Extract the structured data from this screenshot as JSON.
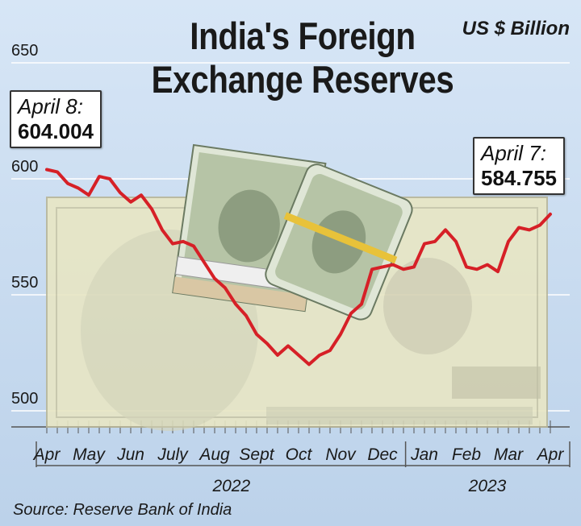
{
  "header": {
    "title_line1": "India's Foreign",
    "title_line2": "Exchange Reserves",
    "unit": "US $ Billion"
  },
  "source": "Source: Reserve Bank of India",
  "colors": {
    "background": "#c9dcf0",
    "line": "#d62027",
    "grid": "#ffffff"
  },
  "callouts": {
    "start": {
      "date": "April 8:",
      "value": "604.004"
    },
    "end": {
      "date": "April 7:",
      "value": "584.755"
    }
  },
  "chart_data": {
    "type": "line",
    "title": "India's Foreign Exchange Reserves",
    "unit": "US $ Billion",
    "ylim": [
      500,
      650
    ],
    "yticks": [
      650,
      600,
      550,
      500
    ],
    "grid": true,
    "month_ticks": [
      "Apr",
      "May",
      "Jun",
      "July",
      "Aug",
      "Sept",
      "Oct",
      "Nov",
      "Dec",
      "Jan",
      "Feb",
      "Mar",
      "Apr"
    ],
    "years": [
      {
        "label": "2022",
        "center_month_index": 4.4
      },
      {
        "label": "2023",
        "center_month_index": 10.5
      }
    ],
    "series": [
      {
        "x": [
          0,
          0.25,
          0.5,
          0.75,
          1.0,
          1.25,
          1.5,
          1.75,
          2.0,
          2.25,
          2.5,
          2.75,
          3.0,
          3.25,
          3.5,
          3.75,
          4.0,
          4.25,
          4.5,
          4.75,
          5.0,
          5.25,
          5.5,
          5.75,
          6.0,
          6.25,
          6.5,
          6.75,
          7.0,
          7.25,
          7.5,
          7.75,
          8.0,
          8.25,
          8.5,
          8.75,
          9.0,
          9.25,
          9.5,
          9.75,
          10.0,
          10.25,
          10.5,
          10.75,
          11.0,
          11.25,
          11.5,
          11.75,
          12.0
        ],
        "values": [
          604.004,
          603,
          598,
          596,
          593,
          601,
          600,
          594,
          590,
          593,
          587,
          578,
          572,
          573,
          571,
          564,
          557,
          553,
          546,
          541,
          533,
          529,
          524,
          528,
          524,
          520,
          524,
          526,
          533,
          542,
          546,
          561,
          562,
          563,
          561,
          562,
          572,
          573,
          578,
          573,
          562,
          561,
          563,
          560,
          573,
          579,
          578,
          580,
          584.755
        ]
      }
    ]
  }
}
